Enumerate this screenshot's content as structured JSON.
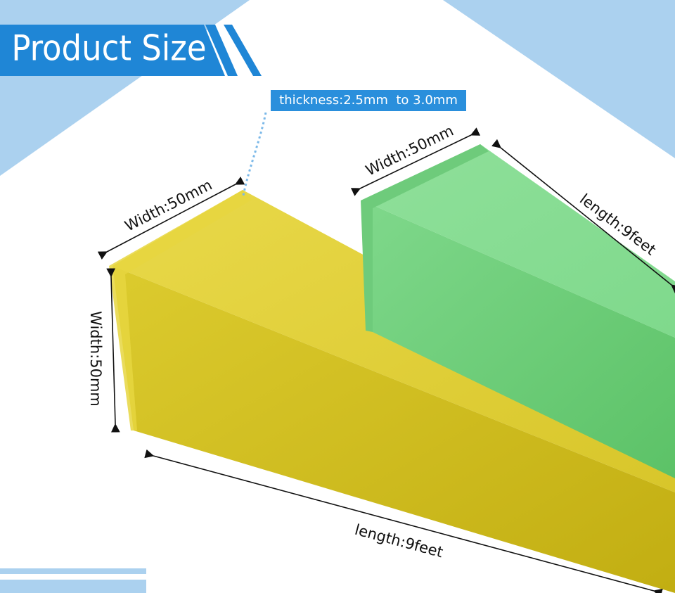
{
  "header": {
    "title": "Product Size"
  },
  "callout": {
    "thickness": "thickness:2.5mm  to 3.0mm"
  },
  "yellow_bar": {
    "top_width": "Width:50mm",
    "side_width": "Width:50mm",
    "length": "length:9feet"
  },
  "green_bar": {
    "top_width": "Width:50mm",
    "length": "length:9feet"
  }
}
